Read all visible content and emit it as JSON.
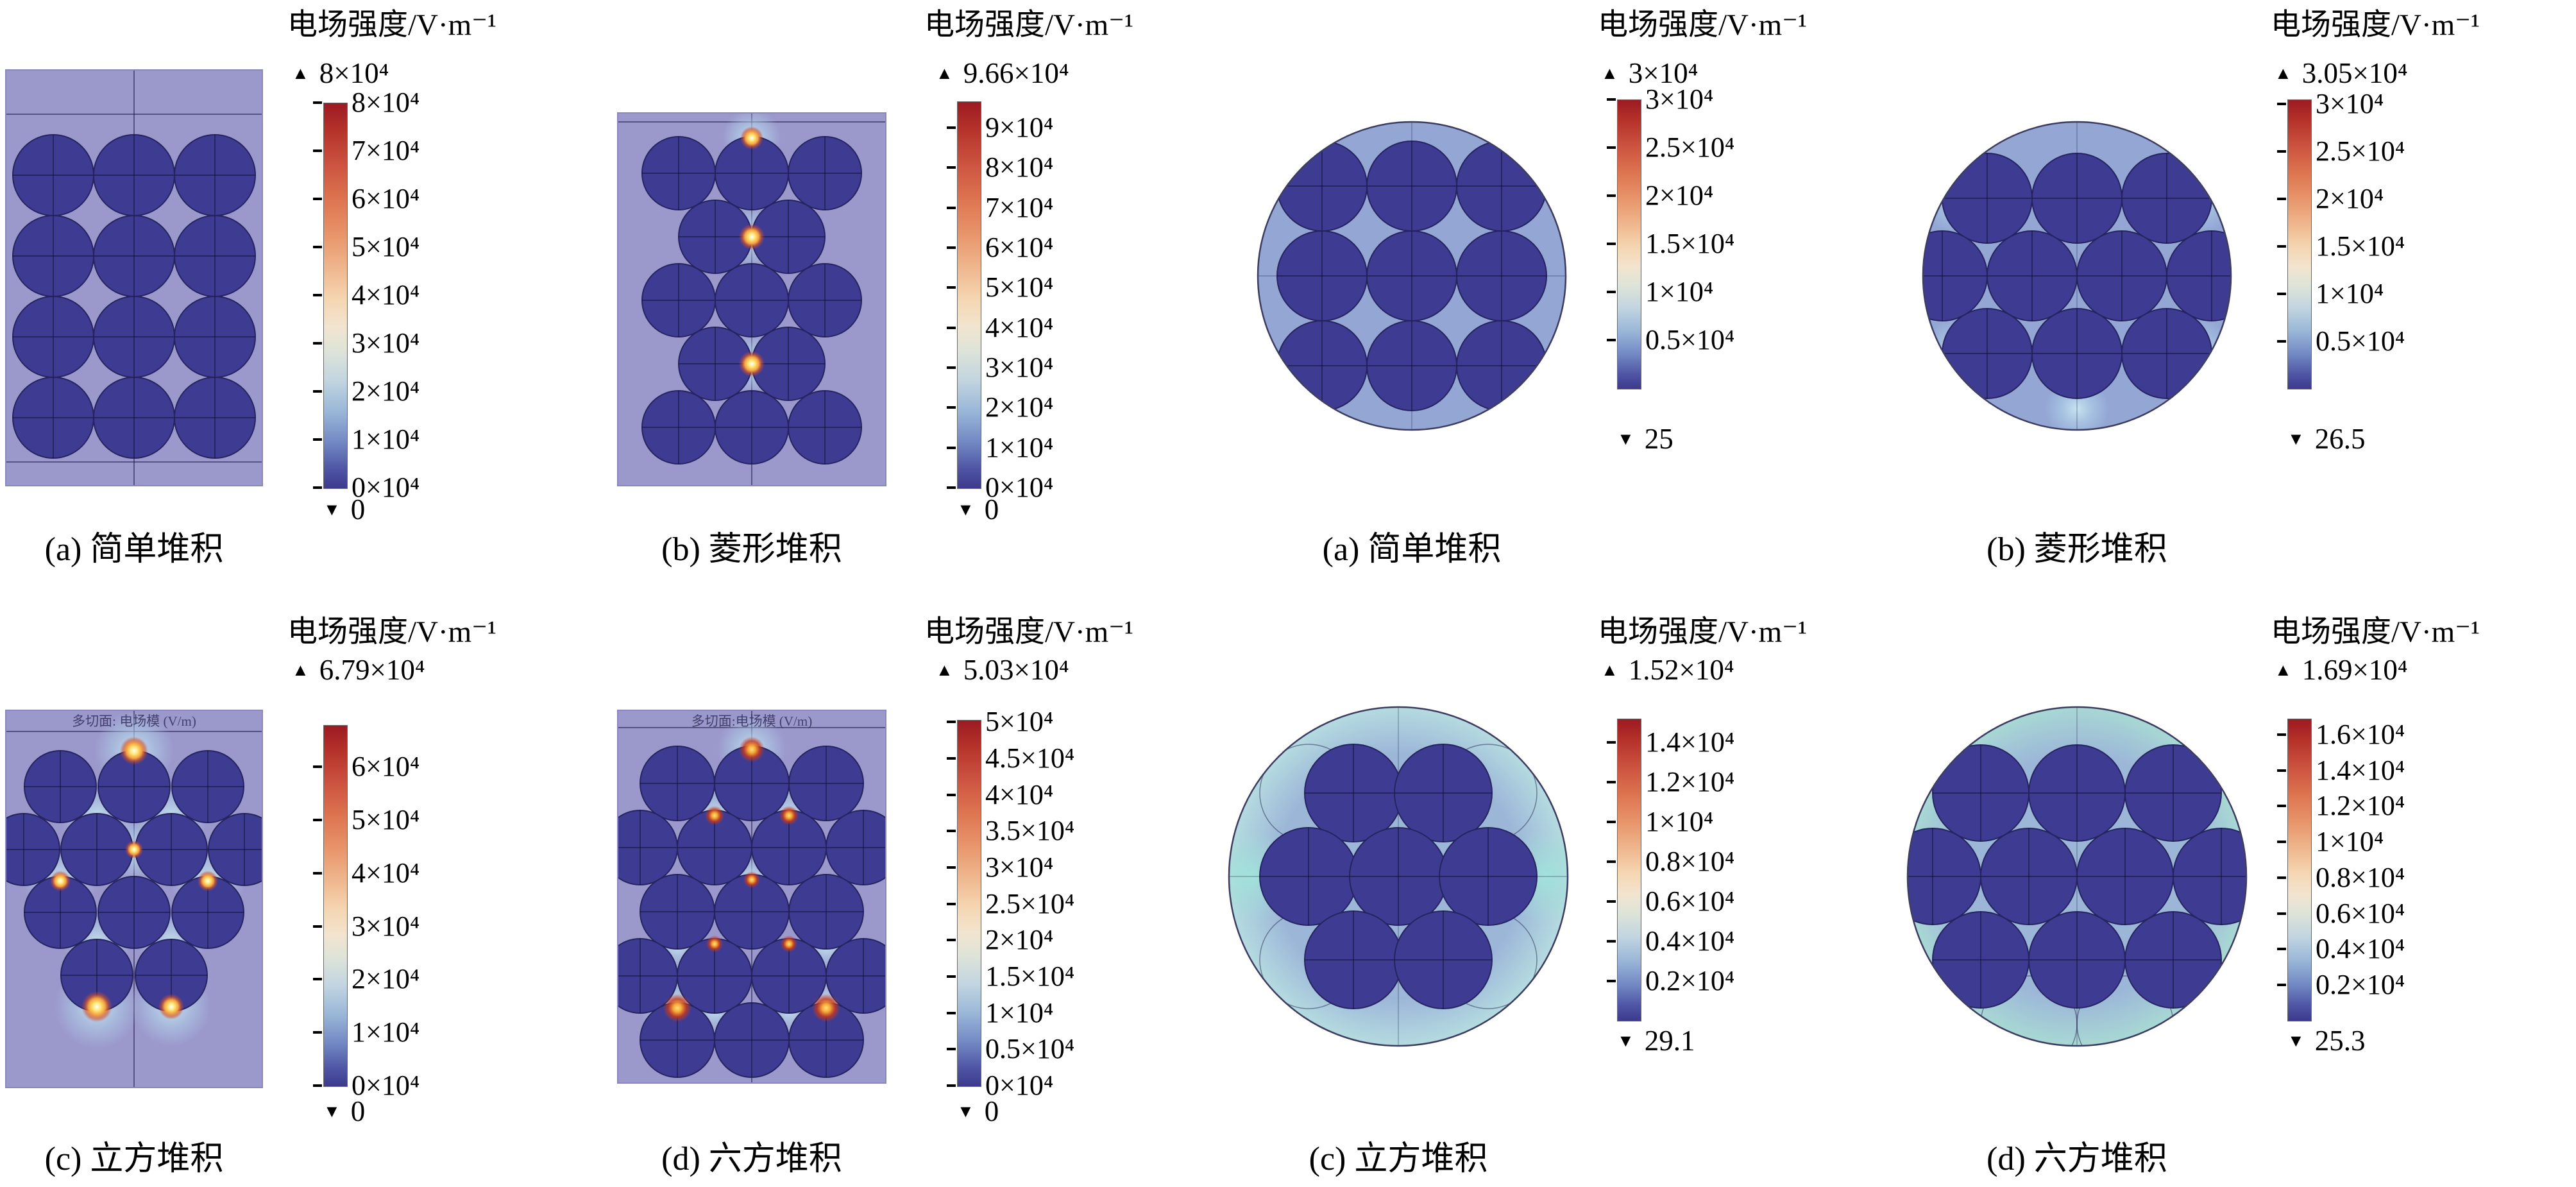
{
  "figure": {
    "legend_title": "电场强度/V·m⁻¹",
    "max_marker": "▲",
    "min_marker": "▼",
    "panels": [
      {
        "caption": "(a) 简单堆积",
        "max_label": "8×10⁴",
        "min_label": "0",
        "ticks": [
          "8×10⁴",
          "7×10⁴",
          "6×10⁴",
          "5×10⁴",
          "4×10⁴",
          "3×10⁴",
          "2×10⁴",
          "1×10⁴",
          "0×10⁴"
        ]
      },
      {
        "caption": "(b) 菱形堆积",
        "max_label": "9.66×10⁴",
        "min_label": "0",
        "ticks": [
          "9×10⁴",
          "8×10⁴",
          "7×10⁴",
          "6×10⁴",
          "5×10⁴",
          "4×10⁴",
          "3×10⁴",
          "2×10⁴",
          "1×10⁴",
          "0×10⁴"
        ]
      },
      {
        "caption": "(a) 简单堆积",
        "max_label": "3×10⁴",
        "min_label": "25",
        "ticks": [
          "3×10⁴",
          "2.5×10⁴",
          "2×10⁴",
          "1.5×10⁴",
          "1×10⁴",
          "0.5×10⁴"
        ]
      },
      {
        "caption": "(b) 菱形堆积",
        "max_label": "3.05×10⁴",
        "min_label": "26.5",
        "ticks": [
          "3×10⁴",
          "2.5×10⁴",
          "2×10⁴",
          "1.5×10⁴",
          "1×10⁴",
          "0.5×10⁴"
        ]
      },
      {
        "caption": "(c) 立方堆积",
        "max_label": "6.79×10⁴",
        "min_label": "0",
        "overlay_label": "多切面: 电场模 (V/m)",
        "ticks": [
          "6×10⁴",
          "5×10⁴",
          "4×10⁴",
          "3×10⁴",
          "2×10⁴",
          "1×10⁴",
          "0×10⁴"
        ]
      },
      {
        "caption": "(d) 六方堆积",
        "max_label": "5.03×10⁴",
        "min_label": "0",
        "overlay_label": "多切面:电场模 (V/m)",
        "ticks": [
          "5×10⁴",
          "4.5×10⁴",
          "4×10⁴",
          "3.5×10⁴",
          "3×10⁴",
          "2.5×10⁴",
          "2×10⁴",
          "1.5×10⁴",
          "1×10⁴",
          "0.5×10⁴",
          "0×10⁴"
        ]
      },
      {
        "caption": "(c) 立方堆积",
        "max_label": "1.52×10⁴",
        "min_label": "29.1",
        "ticks": [
          "1.4×10⁴",
          "1.2×10⁴",
          "1×10⁴",
          "0.8×10⁴",
          "0.6×10⁴",
          "0.4×10⁴",
          "0.2×10⁴"
        ]
      },
      {
        "caption": "(d) 六方堆积",
        "max_label": "1.69×10⁴",
        "min_label": "25.3",
        "ticks": [
          "1.6×10⁴",
          "1.4×10⁴",
          "1.2×10⁴",
          "1×10⁴",
          "0.8×10⁴",
          "0.6×10⁴",
          "0.4×10⁴",
          "0.2×10⁴"
        ]
      }
    ]
  },
  "chart_data": [
    {
      "type": "heatmap",
      "panel": "(a) 简单堆积",
      "quantity": "电场强度",
      "unit": "V·m⁻¹",
      "geometry": "矩形截面",
      "colorbar_max": 80000,
      "colorbar_min": 0,
      "colorbar_ticks": [
        80000,
        70000,
        60000,
        50000,
        40000,
        30000,
        20000,
        10000,
        0
      ]
    },
    {
      "type": "heatmap",
      "panel": "(b) 菱形堆积",
      "quantity": "电场强度",
      "unit": "V·m⁻¹",
      "geometry": "矩形截面",
      "colorbar_max": 96600,
      "colorbar_min": 0,
      "colorbar_ticks": [
        90000,
        80000,
        70000,
        60000,
        50000,
        40000,
        30000,
        20000,
        10000,
        0
      ]
    },
    {
      "type": "heatmap",
      "panel": "(a) 简单堆积",
      "quantity": "电场强度",
      "unit": "V·m⁻¹",
      "geometry": "圆形截面",
      "colorbar_max": 30000,
      "colorbar_min": 25,
      "colorbar_ticks": [
        30000,
        25000,
        20000,
        15000,
        10000,
        5000
      ]
    },
    {
      "type": "heatmap",
      "panel": "(b) 菱形堆积",
      "quantity": "电场强度",
      "unit": "V·m⁻¹",
      "geometry": "圆形截面",
      "colorbar_max": 30500,
      "colorbar_min": 26.5,
      "colorbar_ticks": [
        30000,
        25000,
        20000,
        15000,
        10000,
        5000
      ]
    },
    {
      "type": "heatmap",
      "panel": "(c) 立方堆积",
      "quantity": "电场强度",
      "unit": "V·m⁻¹",
      "geometry": "矩形截面",
      "colorbar_max": 67900,
      "colorbar_min": 0,
      "colorbar_ticks": [
        60000,
        50000,
        40000,
        30000,
        20000,
        10000,
        0
      ]
    },
    {
      "type": "heatmap",
      "panel": "(d) 六方堆积",
      "quantity": "电场强度",
      "unit": "V·m⁻¹",
      "geometry": "矩形截面",
      "colorbar_max": 50300,
      "colorbar_min": 0,
      "colorbar_ticks": [
        50000,
        45000,
        40000,
        35000,
        30000,
        25000,
        20000,
        15000,
        10000,
        5000,
        0
      ]
    },
    {
      "type": "heatmap",
      "panel": "(c) 立方堆积",
      "quantity": "电场强度",
      "unit": "V·m⁻¹",
      "geometry": "圆形截面",
      "colorbar_max": 15200,
      "colorbar_min": 29.1,
      "colorbar_ticks": [
        14000,
        12000,
        10000,
        8000,
        6000,
        4000,
        2000
      ]
    },
    {
      "type": "heatmap",
      "panel": "(d) 六方堆积",
      "quantity": "电场强度",
      "unit": "V·m⁻¹",
      "geometry": "圆形截面",
      "colorbar_max": 16900,
      "colorbar_min": 25.3,
      "colorbar_ticks": [
        16000,
        14000,
        12000,
        10000,
        8000,
        6000,
        4000,
        2000
      ]
    }
  ]
}
